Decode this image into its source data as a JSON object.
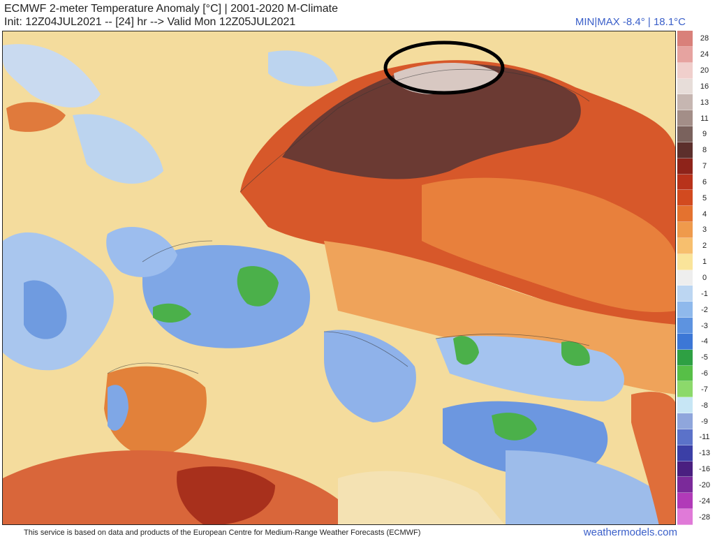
{
  "header": {
    "title": "ECMWF 2-meter Temperature Anomaly [°C] | 2001-2020 M-Climate",
    "subtitle": "Init: 12Z04JUL2021 -- [24] hr --> Valid Mon 12Z05JUL2021",
    "minmax": "MIN|MAX -8.4° | 18.1°C"
  },
  "colorbar": [
    {
      "label": "28",
      "color": "#d9807a"
    },
    {
      "label": "24",
      "color": "#e6a3a0"
    },
    {
      "label": "20",
      "color": "#f0cfcc"
    },
    {
      "label": "16",
      "color": "#e7ddd9"
    },
    {
      "label": "13",
      "color": "#c6b6b1"
    },
    {
      "label": "11",
      "color": "#a38e88"
    },
    {
      "label": "9",
      "color": "#7a625d"
    },
    {
      "label": "8",
      "color": "#5c2f2c"
    },
    {
      "label": "7",
      "color": "#8e231a"
    },
    {
      "label": "6",
      "color": "#b8321b"
    },
    {
      "label": "5",
      "color": "#d24a1f"
    },
    {
      "label": "4",
      "color": "#e4722f"
    },
    {
      "label": "3",
      "color": "#ef9a4c"
    },
    {
      "label": "2",
      "color": "#f7bf6e"
    },
    {
      "label": "1",
      "color": "#fae49a"
    },
    {
      "label": "0",
      "color": "#eeeeee"
    },
    {
      "label": "-1",
      "color": "#bcd6f2"
    },
    {
      "label": "-2",
      "color": "#8fb9ec"
    },
    {
      "label": "-3",
      "color": "#5d93e0"
    },
    {
      "label": "-4",
      "color": "#3c77d6"
    },
    {
      "label": "-5",
      "color": "#2ea043"
    },
    {
      "label": "-6",
      "color": "#57bf47"
    },
    {
      "label": "-7",
      "color": "#8cd96b"
    },
    {
      "label": "-8",
      "color": "#c7e6f5"
    },
    {
      "label": "-9",
      "color": "#8fa6dc"
    },
    {
      "label": "-11",
      "color": "#5b72c9"
    },
    {
      "label": "-13",
      "color": "#3b3fa6"
    },
    {
      "label": "-16",
      "color": "#4a1f80"
    },
    {
      "label": "-20",
      "color": "#7b2a9a"
    },
    {
      "label": "-24",
      "color": "#b13ab8"
    },
    {
      "label": "-28",
      "color": "#e07ad8"
    }
  ],
  "footer": {
    "disclaimer": "This service is based on data and products of the European Centre for Medium-Range Weather Forecasts (ECMWF)",
    "brand": "weathermodels.com"
  }
}
